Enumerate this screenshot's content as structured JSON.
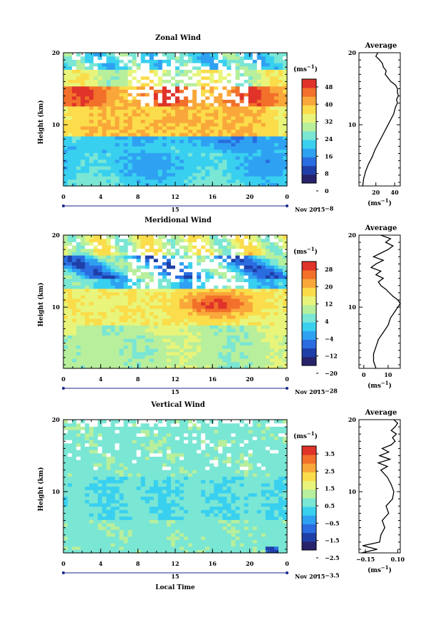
{
  "chart_data": [
    {
      "type": "heatmap",
      "title": "Zonal Wind",
      "ylabel": "Height (km)",
      "xlabel": "",
      "x_ticks": [
        "0",
        "4",
        "8",
        "12",
        "16",
        "20",
        "0"
      ],
      "y_ticks": [
        "10",
        "20"
      ],
      "ylim": [
        1.5,
        20.0
      ],
      "xlim": [
        0,
        24
      ],
      "date_label": "15",
      "month_label": "Nov 2015",
      "colorbar": {
        "unit_label": "(ms",
        "unit_exp": "−1",
        "unit_close": ")",
        "ticks": [
          "48",
          "40",
          "32",
          "24",
          "16",
          "8",
          "0",
          "−8"
        ],
        "vmin": -12,
        "vmax": 52
      },
      "profile": {
        "title": "Average",
        "x_ticks": [
          "20",
          "40"
        ],
        "xlim": [
          2,
          46
        ],
        "unit_label": "(ms",
        "unit_exp": "−1",
        "unit_close": ")",
        "heights": [
          1.5,
          2.5,
          3.5,
          4.5,
          5.5,
          6.5,
          7.5,
          8.5,
          9.5,
          10.5,
          11.5,
          12.5,
          13.0,
          13.5,
          14.0,
          14.5,
          15.0,
          15.5,
          16.0,
          16.5,
          17.0,
          17.5,
          18.0,
          18.5,
          19.0,
          19.5,
          20.0
        ],
        "values": [
          6,
          7,
          9,
          12,
          16,
          19,
          23,
          27,
          31,
          35,
          39,
          41,
          43,
          42,
          44,
          43,
          43,
          41,
          36,
          33,
          30,
          31,
          28,
          27,
          24,
          20,
          22
        ]
      }
    },
    {
      "type": "heatmap",
      "title": "Meridional Wind",
      "ylabel": "Height (km)",
      "xlabel": "",
      "x_ticks": [
        "0",
        "4",
        "8",
        "12",
        "16",
        "20",
        "0"
      ],
      "y_ticks": [
        "10",
        "20"
      ],
      "ylim": [
        1.5,
        20.0
      ],
      "xlim": [
        0,
        24
      ],
      "date_label": "15",
      "month_label": "Nov 2015",
      "colorbar": {
        "unit_label": "(ms",
        "unit_exp": "−1",
        "unit_close": ")",
        "ticks": [
          "28",
          "20",
          "12",
          "4",
          "−4",
          "−12",
          "−20",
          "−28"
        ],
        "vmin": -32,
        "vmax": 32
      },
      "profile": {
        "title": "Average",
        "x_ticks": [
          "0",
          "10"
        ],
        "xlim": [
          -2,
          15
        ],
        "unit_label": "(ms",
        "unit_exp": "−1",
        "unit_close": ")",
        "heights": [
          1.5,
          2.5,
          3.5,
          4.5,
          5.5,
          6.5,
          7.5,
          8.5,
          9.5,
          10.5,
          11.0,
          11.5,
          12.5,
          13.0,
          13.5,
          14.0,
          14.5,
          15.0,
          15.5,
          16.0,
          16.5,
          17.0,
          17.5,
          18.0,
          18.5,
          19.0,
          19.5,
          20.0
        ],
        "values": [
          5,
          4,
          4,
          5,
          6,
          8,
          10,
          11,
          13,
          15,
          14,
          12,
          9,
          7,
          6,
          8,
          5,
          7,
          3,
          5,
          8,
          4,
          7,
          10,
          12,
          9,
          11,
          7
        ]
      }
    },
    {
      "type": "heatmap",
      "title": "Vertical Wind",
      "ylabel": "Height (km)",
      "xlabel": "Local Time",
      "x_ticks": [
        "0",
        "4",
        "8",
        "12",
        "16",
        "20",
        "0"
      ],
      "y_ticks": [
        "10",
        "20"
      ],
      "ylim": [
        1.5,
        20.0
      ],
      "xlim": [
        0,
        24
      ],
      "date_label": "15",
      "month_label": "Nov 2015",
      "colorbar": {
        "unit_label": "(ms",
        "unit_exp": "−1",
        "unit_close": ")",
        "ticks": [
          "3.5",
          "2.5",
          "1.5",
          "0.5",
          "−0.5",
          "−1.5",
          "−2.5",
          "−3.5"
        ],
        "vmin": -4,
        "vmax": 4
      },
      "profile": {
        "title": "Average",
        "x_ticks": [
          "−0.15",
          "0.10"
        ],
        "xlim": [
          -0.2,
          0.12
        ],
        "unit_label": "(ms",
        "unit_exp": "−1",
        "unit_close": ")",
        "heights": [
          1.5,
          2.0,
          2.5,
          3.0,
          4.0,
          5.0,
          6.0,
          7.0,
          8.0,
          9.0,
          10.0,
          11.0,
          12.0,
          13.0,
          13.5,
          14.0,
          14.5,
          15.0,
          15.5,
          16.0,
          16.5,
          17.0,
          17.5,
          18.0,
          18.5,
          19.0,
          19.5,
          20.0
        ],
        "values": [
          -0.18,
          -0.06,
          -0.17,
          -0.04,
          -0.03,
          0.0,
          -0.02,
          0.03,
          0.01,
          0.06,
          0.07,
          0.05,
          0.02,
          -0.03,
          0.02,
          -0.05,
          0.04,
          -0.04,
          0.03,
          -0.02,
          0.05,
          0.08,
          0.06,
          0.09,
          0.05,
          0.08,
          0.1,
          0.07
        ]
      }
    }
  ]
}
